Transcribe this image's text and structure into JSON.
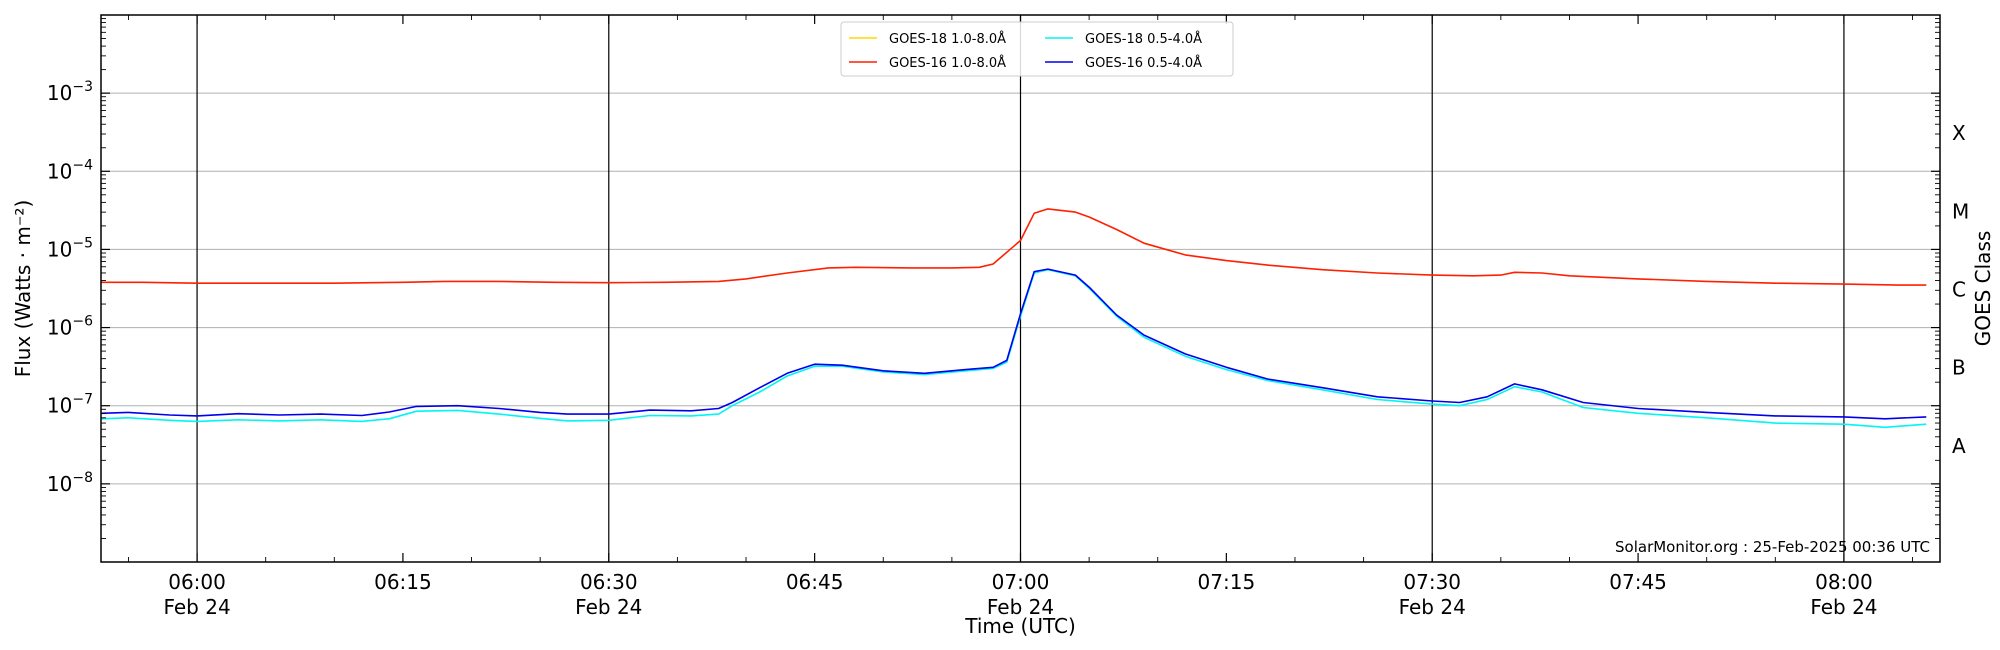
{
  "chart_data": {
    "type": "line",
    "xlabel": "Time (UTC)",
    "ylabel": "Flux (Watts · m⁻²)",
    "ylabel_right": "GOES Class",
    "y_scale": "log",
    "xlim": [
      "05:53",
      "08:07"
    ],
    "ylim": [
      1e-09,
      0.01
    ],
    "grid": "horizontal",
    "legend_position": "top-center",
    "annotation": "SolarMonitor.org : 25-Feb-2025 00:36 UTC",
    "x_ticks": [
      {
        "time": "06:00",
        "label": "06:00",
        "date": "Feb 24"
      },
      {
        "time": "06:15",
        "label": "06:15",
        "date": ""
      },
      {
        "time": "06:30",
        "label": "06:30",
        "date": "Feb 24"
      },
      {
        "time": "06:45",
        "label": "06:45",
        "date": ""
      },
      {
        "time": "07:00",
        "label": "07:00",
        "date": "Feb 24"
      },
      {
        "time": "07:15",
        "label": "07:15",
        "date": ""
      },
      {
        "time": "07:30",
        "label": "07:30",
        "date": "Feb 24"
      },
      {
        "time": "07:45",
        "label": "07:45",
        "date": ""
      },
      {
        "time": "08:00",
        "label": "08:00",
        "date": "Feb 24"
      }
    ],
    "y_ticks": [
      {
        "value": 1e-08,
        "base": "10",
        "exp": "−8"
      },
      {
        "value": 1e-07,
        "base": "10",
        "exp": "−7"
      },
      {
        "value": 1e-06,
        "base": "10",
        "exp": "−6"
      },
      {
        "value": 1e-05,
        "base": "10",
        "exp": "−5"
      },
      {
        "value": 0.0001,
        "base": "10",
        "exp": "−4"
      },
      {
        "value": 0.001,
        "base": "10",
        "exp": "−3"
      }
    ],
    "goes_classes": [
      {
        "label": "A",
        "value": 3.16e-08
      },
      {
        "label": "B",
        "value": 3.16e-07
      },
      {
        "label": "C",
        "value": 3.16e-06
      },
      {
        "label": "M",
        "value": 3.16e-05
      },
      {
        "label": "X",
        "value": 0.000316
      }
    ],
    "vertical_lines": [
      "06:00",
      "06:30",
      "07:00",
      "07:30",
      "08:00"
    ],
    "series": [
      {
        "name": "GOES-18 1.0-8.0Å",
        "color": "#ffd700",
        "points": []
      },
      {
        "name": "GOES-16 1.0-8.0Å",
        "color": "#ff2000",
        "points": [
          [
            "05:53",
            3.8e-06
          ],
          [
            "05:56",
            3.8e-06
          ],
          [
            "06:00",
            3.7e-06
          ],
          [
            "06:05",
            3.7e-06
          ],
          [
            "06:10",
            3.7e-06
          ],
          [
            "06:15",
            3.8e-06
          ],
          [
            "06:18",
            3.9e-06
          ],
          [
            "06:22",
            3.9e-06
          ],
          [
            "06:26",
            3.8e-06
          ],
          [
            "06:30",
            3.75e-06
          ],
          [
            "06:34",
            3.8e-06
          ],
          [
            "06:38",
            3.9e-06
          ],
          [
            "06:40",
            4.2e-06
          ],
          [
            "06:43",
            5e-06
          ],
          [
            "06:46",
            5.8e-06
          ],
          [
            "06:48",
            5.9e-06
          ],
          [
            "06:52",
            5.8e-06
          ],
          [
            "06:55",
            5.8e-06
          ],
          [
            "06:57",
            5.9e-06
          ],
          [
            "06:58",
            6.5e-06
          ],
          [
            "07:00",
            1.3e-05
          ],
          [
            "07:01",
            2.9e-05
          ],
          [
            "07:02",
            3.3e-05
          ],
          [
            "07:04",
            3e-05
          ],
          [
            "07:05",
            2.6e-05
          ],
          [
            "07:07",
            1.8e-05
          ],
          [
            "07:09",
            1.2e-05
          ],
          [
            "07:12",
            8.5e-06
          ],
          [
            "07:15",
            7.2e-06
          ],
          [
            "07:18",
            6.3e-06
          ],
          [
            "07:22",
            5.5e-06
          ],
          [
            "07:26",
            5e-06
          ],
          [
            "07:30",
            4.7e-06
          ],
          [
            "07:33",
            4.6e-06
          ],
          [
            "07:35",
            4.7e-06
          ],
          [
            "07:36",
            5.1e-06
          ],
          [
            "07:38",
            5e-06
          ],
          [
            "07:40",
            4.6e-06
          ],
          [
            "07:45",
            4.2e-06
          ],
          [
            "07:50",
            3.9e-06
          ],
          [
            "07:55",
            3.7e-06
          ],
          [
            "08:00",
            3.6e-06
          ],
          [
            "08:04",
            3.5e-06
          ],
          [
            "08:06",
            3.5e-06
          ]
        ]
      },
      {
        "name": "GOES-18 0.5-4.0Å",
        "color": "#00f5f5",
        "points": [
          [
            "05:53",
            6.8e-08
          ],
          [
            "05:55",
            7e-08
          ],
          [
            "05:58",
            6.5e-08
          ],
          [
            "06:00",
            6.3e-08
          ],
          [
            "06:03",
            6.6e-08
          ],
          [
            "06:06",
            6.4e-08
          ],
          [
            "06:09",
            6.6e-08
          ],
          [
            "06:12",
            6.3e-08
          ],
          [
            "06:14",
            6.8e-08
          ],
          [
            "06:16",
            8.5e-08
          ],
          [
            "06:19",
            8.7e-08
          ],
          [
            "06:22",
            7.8e-08
          ],
          [
            "06:25",
            6.9e-08
          ],
          [
            "06:27",
            6.4e-08
          ],
          [
            "06:30",
            6.5e-08
          ],
          [
            "06:33",
            7.5e-08
          ],
          [
            "06:36",
            7.4e-08
          ],
          [
            "06:38",
            7.8e-08
          ],
          [
            "06:39",
            1e-07
          ],
          [
            "06:41",
            1.5e-07
          ],
          [
            "06:43",
            2.4e-07
          ],
          [
            "06:45",
            3.2e-07
          ],
          [
            "06:47",
            3.2e-07
          ],
          [
            "06:50",
            2.7e-07
          ],
          [
            "06:53",
            2.5e-07
          ],
          [
            "06:56",
            2.8e-07
          ],
          [
            "06:58",
            3e-07
          ],
          [
            "06:59",
            3.6e-07
          ],
          [
            "07:00",
            1.4e-06
          ],
          [
            "07:01",
            5e-06
          ],
          [
            "07:02",
            5.5e-06
          ],
          [
            "07:04",
            4.6e-06
          ],
          [
            "07:05",
            3.2e-06
          ],
          [
            "07:07",
            1.4e-06
          ],
          [
            "07:09",
            7.5e-07
          ],
          [
            "07:12",
            4.3e-07
          ],
          [
            "07:15",
            2.9e-07
          ],
          [
            "07:18",
            2.1e-07
          ],
          [
            "07:22",
            1.6e-07
          ],
          [
            "07:26",
            1.2e-07
          ],
          [
            "07:30",
            1.05e-07
          ],
          [
            "07:32",
            1e-07
          ],
          [
            "07:34",
            1.2e-07
          ],
          [
            "07:36",
            1.75e-07
          ],
          [
            "07:38",
            1.5e-07
          ],
          [
            "07:41",
            9.5e-08
          ],
          [
            "07:45",
            8e-08
          ],
          [
            "07:50",
            7e-08
          ],
          [
            "07:55",
            6e-08
          ],
          [
            "08:00",
            5.8e-08
          ],
          [
            "08:03",
            5.3e-08
          ],
          [
            "08:06",
            5.8e-08
          ]
        ]
      },
      {
        "name": "GOES-16 0.5-4.0Å",
        "color": "#0000ee",
        "points": [
          [
            "05:53",
            8e-08
          ],
          [
            "05:55",
            8.2e-08
          ],
          [
            "05:58",
            7.6e-08
          ],
          [
            "06:00",
            7.4e-08
          ],
          [
            "06:03",
            7.9e-08
          ],
          [
            "06:06",
            7.6e-08
          ],
          [
            "06:09",
            7.8e-08
          ],
          [
            "06:12",
            7.5e-08
          ],
          [
            "06:14",
            8.3e-08
          ],
          [
            "06:16",
            9.8e-08
          ],
          [
            "06:19",
            1e-07
          ],
          [
            "06:22",
            9.2e-08
          ],
          [
            "06:25",
            8.2e-08
          ],
          [
            "06:27",
            7.8e-08
          ],
          [
            "06:30",
            7.8e-08
          ],
          [
            "06:33",
            8.8e-08
          ],
          [
            "06:36",
            8.6e-08
          ],
          [
            "06:38",
            9.2e-08
          ],
          [
            "06:39",
            1.1e-07
          ],
          [
            "06:41",
            1.7e-07
          ],
          [
            "06:43",
            2.6e-07
          ],
          [
            "06:45",
            3.4e-07
          ],
          [
            "06:47",
            3.3e-07
          ],
          [
            "06:50",
            2.8e-07
          ],
          [
            "06:53",
            2.6e-07
          ],
          [
            "06:56",
            2.9e-07
          ],
          [
            "06:58",
            3.1e-07
          ],
          [
            "06:59",
            3.8e-07
          ],
          [
            "07:00",
            1.5e-06
          ],
          [
            "07:01",
            5.2e-06
          ],
          [
            "07:02",
            5.6e-06
          ],
          [
            "07:04",
            4.7e-06
          ],
          [
            "07:05",
            3.3e-06
          ],
          [
            "07:07",
            1.45e-06
          ],
          [
            "07:09",
            8e-07
          ],
          [
            "07:12",
            4.6e-07
          ],
          [
            "07:15",
            3.1e-07
          ],
          [
            "07:18",
            2.2e-07
          ],
          [
            "07:22",
            1.7e-07
          ],
          [
            "07:26",
            1.3e-07
          ],
          [
            "07:30",
            1.15e-07
          ],
          [
            "07:32",
            1.1e-07
          ],
          [
            "07:34",
            1.3e-07
          ],
          [
            "07:36",
            1.9e-07
          ],
          [
            "07:38",
            1.6e-07
          ],
          [
            "07:41",
            1.1e-07
          ],
          [
            "07:45",
            9.2e-08
          ],
          [
            "07:50",
            8.2e-08
          ],
          [
            "07:55",
            7.4e-08
          ],
          [
            "08:00",
            7.2e-08
          ],
          [
            "08:03",
            6.8e-08
          ],
          [
            "08:06",
            7.2e-08
          ]
        ]
      }
    ]
  }
}
